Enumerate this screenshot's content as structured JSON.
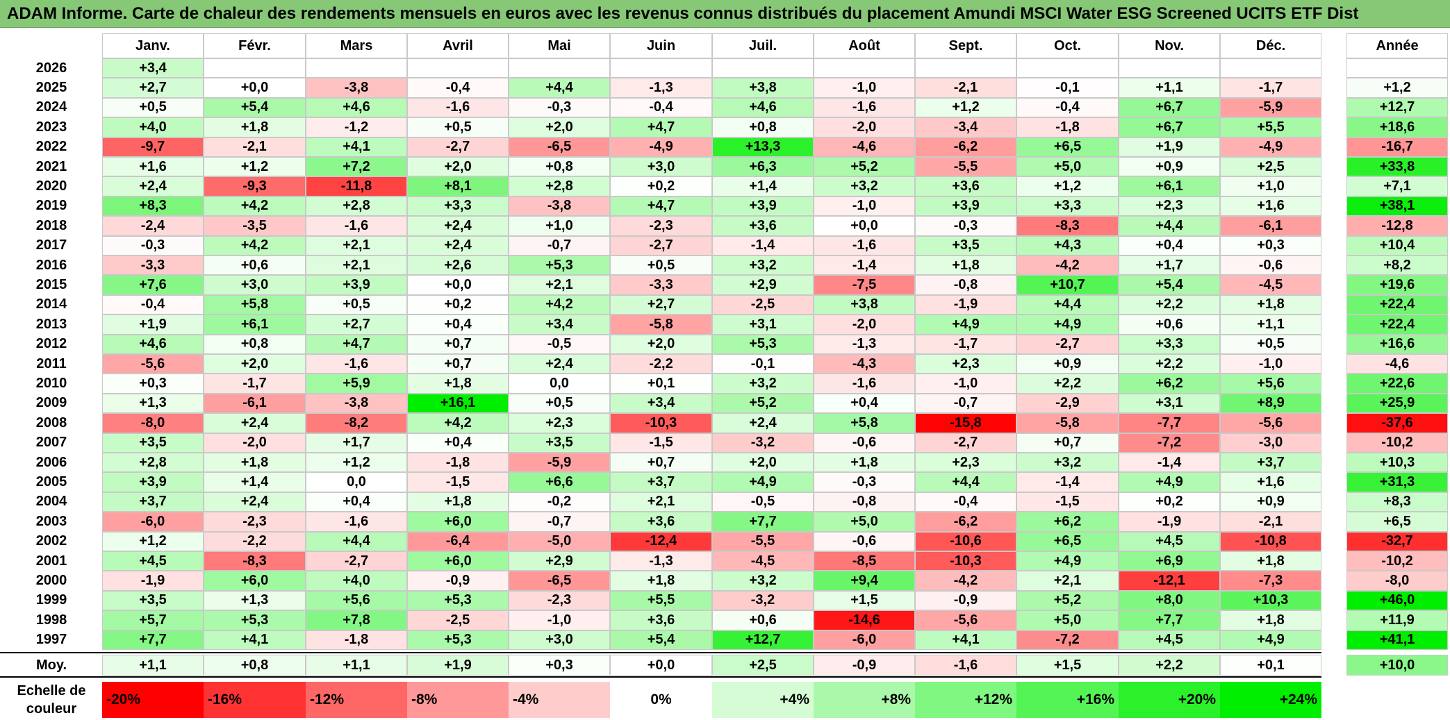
{
  "title": "ADAM Informe. Carte de chaleur des rendements mensuels en euros avec les revenus connus distribués du placement Amundi MSCI Water ESG Screened UCITS ETF Dist",
  "chart_data": {
    "type": "heatmap",
    "columns": [
      "Janv.",
      "Févr.",
      "Mars",
      "Avril",
      "Mai",
      "Juin",
      "Juil.",
      "Août",
      "Sept.",
      "Oct.",
      "Nov.",
      "Déc."
    ],
    "year_column": "Année",
    "average_label": "Moy.",
    "rows": [
      {
        "year": "2026",
        "months": [
          "+3,4",
          "",
          "",
          "",
          "",
          "",
          "",
          "",
          "",
          "",
          "",
          ""
        ],
        "annual": ""
      },
      {
        "year": "2025",
        "months": [
          "+2,7",
          "+0,0",
          "-3,8",
          "-0,4",
          "+4,4",
          "-1,3",
          "+3,8",
          "-1,0",
          "-2,1",
          "-0,1",
          "+1,1",
          "-1,7"
        ],
        "annual": "+1,2"
      },
      {
        "year": "2024",
        "months": [
          "+0,5",
          "+5,4",
          "+4,6",
          "-1,6",
          "-0,3",
          "-0,4",
          "+4,6",
          "-1,6",
          "+1,2",
          "-0,4",
          "+6,7",
          "-5,9"
        ],
        "annual": "+12,7"
      },
      {
        "year": "2023",
        "months": [
          "+4,0",
          "+1,8",
          "-1,2",
          "+0,5",
          "+2,0",
          "+4,7",
          "+0,8",
          "-2,0",
          "-3,4",
          "-1,8",
          "+6,7",
          "+5,5"
        ],
        "annual": "+18,6"
      },
      {
        "year": "2022",
        "months": [
          "-9,7",
          "-2,1",
          "+4,1",
          "-2,7",
          "-6,5",
          "-4,9",
          "+13,3",
          "-4,6",
          "-6,2",
          "+6,5",
          "+1,9",
          "-4,9"
        ],
        "annual": "-16,7"
      },
      {
        "year": "2021",
        "months": [
          "+1,6",
          "+1,2",
          "+7,2",
          "+2,0",
          "+0,8",
          "+3,0",
          "+6,3",
          "+5,2",
          "-5,5",
          "+5,0",
          "+0,9",
          "+2,5"
        ],
        "annual": "+33,8"
      },
      {
        "year": "2020",
        "months": [
          "+2,4",
          "-9,3",
          "-11,8",
          "+8,1",
          "+2,8",
          "+0,2",
          "+1,4",
          "+3,2",
          "+3,6",
          "+1,2",
          "+6,1",
          "+1,0"
        ],
        "annual": "+7,1"
      },
      {
        "year": "2019",
        "months": [
          "+8,3",
          "+4,2",
          "+2,8",
          "+3,3",
          "-3,8",
          "+4,7",
          "+3,9",
          "-1,0",
          "+3,9",
          "+3,3",
          "+2,3",
          "+1,6"
        ],
        "annual": "+38,1"
      },
      {
        "year": "2018",
        "months": [
          "-2,4",
          "-3,5",
          "-1,6",
          "+2,4",
          "+1,0",
          "-2,3",
          "+3,6",
          "+0,0",
          "-0,3",
          "-8,3",
          "+4,4",
          "-6,1"
        ],
        "annual": "-12,8"
      },
      {
        "year": "2017",
        "months": [
          "-0,3",
          "+4,2",
          "+2,1",
          "+2,4",
          "-0,7",
          "-2,7",
          "-1,4",
          "-1,6",
          "+3,5",
          "+4,3",
          "+0,4",
          "+0,3"
        ],
        "annual": "+10,4"
      },
      {
        "year": "2016",
        "months": [
          "-3,3",
          "+0,6",
          "+2,1",
          "+2,6",
          "+5,3",
          "+0,5",
          "+3,2",
          "-1,4",
          "+1,8",
          "-4,2",
          "+1,7",
          "-0,6"
        ],
        "annual": "+8,2"
      },
      {
        "year": "2015",
        "months": [
          "+7,6",
          "+3,0",
          "+3,9",
          "+0,0",
          "+2,1",
          "-3,3",
          "+2,9",
          "-7,5",
          "-0,8",
          "+10,7",
          "+5,4",
          "-4,5"
        ],
        "annual": "+19,6"
      },
      {
        "year": "2014",
        "months": [
          "-0,4",
          "+5,8",
          "+0,5",
          "+0,2",
          "+4,2",
          "+2,7",
          "-2,5",
          "+3,8",
          "-1,9",
          "+4,4",
          "+2,2",
          "+1,8"
        ],
        "annual": "+22,4"
      },
      {
        "year": "2013",
        "months": [
          "+1,9",
          "+6,1",
          "+2,7",
          "+0,4",
          "+3,4",
          "-5,8",
          "+3,1",
          "-2,0",
          "+4,9",
          "+4,9",
          "+0,6",
          "+1,1"
        ],
        "annual": "+22,4"
      },
      {
        "year": "2012",
        "months": [
          "+4,6",
          "+0,8",
          "+4,7",
          "+0,7",
          "-0,5",
          "+2,0",
          "+5,3",
          "-1,3",
          "-1,7",
          "-2,7",
          "+3,3",
          "+0,5"
        ],
        "annual": "+16,6"
      },
      {
        "year": "2011",
        "months": [
          "-5,6",
          "+2,0",
          "-1,6",
          "+0,7",
          "+2,4",
          "-2,2",
          "-0,1",
          "-4,3",
          "+2,3",
          "+0,9",
          "+2,2",
          "-1,0"
        ],
        "annual": "-4,6"
      },
      {
        "year": "2010",
        "months": [
          "+0,3",
          "-1,7",
          "+5,9",
          "+1,8",
          "0,0",
          "+0,1",
          "+3,2",
          "-1,6",
          "-1,0",
          "+2,2",
          "+6,2",
          "+5,6"
        ],
        "annual": "+22,6"
      },
      {
        "year": "2009",
        "months": [
          "+1,3",
          "-6,1",
          "-3,8",
          "+16,1",
          "+0,5",
          "+3,4",
          "+5,2",
          "+0,4",
          "-0,7",
          "-2,9",
          "+3,1",
          "+8,9"
        ],
        "annual": "+25,9"
      },
      {
        "year": "2008",
        "months": [
          "-8,0",
          "+2,4",
          "-8,2",
          "+4,2",
          "+2,3",
          "-10,3",
          "+2,4",
          "+5,8",
          "-15,8",
          "-5,8",
          "-7,7",
          "-5,6"
        ],
        "annual": "-37,6"
      },
      {
        "year": "2007",
        "months": [
          "+3,5",
          "-2,0",
          "+1,7",
          "+0,4",
          "+3,5",
          "-1,5",
          "-3,2",
          "-0,6",
          "-2,7",
          "+0,7",
          "-7,2",
          "-3,0"
        ],
        "annual": "-10,2"
      },
      {
        "year": "2006",
        "months": [
          "+2,8",
          "+1,8",
          "+1,2",
          "-1,8",
          "-5,9",
          "+0,7",
          "+2,0",
          "+1,8",
          "+2,3",
          "+3,2",
          "-1,4",
          "+3,7"
        ],
        "annual": "+10,3"
      },
      {
        "year": "2005",
        "months": [
          "+3,9",
          "+1,4",
          "0,0",
          "-1,5",
          "+6,6",
          "+3,7",
          "+4,9",
          "-0,3",
          "+4,4",
          "-1,4",
          "+4,9",
          "+1,6"
        ],
        "annual": "+31,3"
      },
      {
        "year": "2004",
        "months": [
          "+3,7",
          "+2,4",
          "+0,4",
          "+1,8",
          "-0,2",
          "+2,1",
          "-0,5",
          "-0,8",
          "-0,4",
          "-1,5",
          "+0,2",
          "+0,9"
        ],
        "annual": "+8,3"
      },
      {
        "year": "2003",
        "months": [
          "-6,0",
          "-2,3",
          "-1,6",
          "+6,0",
          "-0,7",
          "+3,6",
          "+7,7",
          "+5,0",
          "-6,2",
          "+6,2",
          "-1,9",
          "-2,1"
        ],
        "annual": "+6,5"
      },
      {
        "year": "2002",
        "months": [
          "+1,2",
          "-2,2",
          "+4,4",
          "-6,4",
          "-5,0",
          "-12,4",
          "-5,5",
          "-0,6",
          "-10,6",
          "+6,5",
          "+4,5",
          "-10,8"
        ],
        "annual": "-32,7"
      },
      {
        "year": "2001",
        "months": [
          "+4,5",
          "-8,3",
          "-2,7",
          "+6,0",
          "+2,9",
          "-1,3",
          "-4,5",
          "-8,5",
          "-10,3",
          "+4,9",
          "+6,9",
          "+1,8"
        ],
        "annual": "-10,2"
      },
      {
        "year": "2000",
        "months": [
          "-1,9",
          "+6,0",
          "+4,0",
          "-0,9",
          "-6,5",
          "+1,8",
          "+3,2",
          "+9,4",
          "-4,2",
          "+2,1",
          "-12,1",
          "-7,3"
        ],
        "annual": "-8,0"
      },
      {
        "year": "1999",
        "months": [
          "+3,5",
          "+1,3",
          "+5,6",
          "+5,3",
          "-2,3",
          "+5,5",
          "-3,2",
          "+1,5",
          "-0,9",
          "+5,2",
          "+8,0",
          "+10,3"
        ],
        "annual": "+46,0"
      },
      {
        "year": "1998",
        "months": [
          "+5,7",
          "+5,3",
          "+7,8",
          "-2,5",
          "-1,0",
          "+3,6",
          "+0,6",
          "-14,6",
          "-5,6",
          "+5,0",
          "+7,7",
          "+1,8"
        ],
        "annual": "+11,9"
      },
      {
        "year": "1997",
        "months": [
          "+7,7",
          "+4,1",
          "-1,8",
          "+5,3",
          "+3,0",
          "+5,4",
          "+12,7",
          "-6,0",
          "+4,1",
          "-7,2",
          "+4,5",
          "+4,9"
        ],
        "annual": "+41,1"
      }
    ],
    "average": {
      "months": [
        "+1,1",
        "+0,8",
        "+1,1",
        "+1,9",
        "+0,3",
        "+0,0",
        "+2,5",
        "-0,9",
        "-1,6",
        "+1,5",
        "+2,2",
        "+0,1"
      ],
      "annual": "+10,0"
    },
    "legend_title": "Echelle de couleur",
    "legend": [
      "-20%",
      "-16%",
      "-12%",
      "-8%",
      "-4%",
      "0%",
      "+4%",
      "+8%",
      "+12%",
      "+16%",
      "+20%",
      "+24%"
    ],
    "colors": {
      "title_bg": "#86c876",
      "negative_max": "#ff0000",
      "neutral": "#ffffff",
      "positive_max": "#00ee00"
    }
  }
}
